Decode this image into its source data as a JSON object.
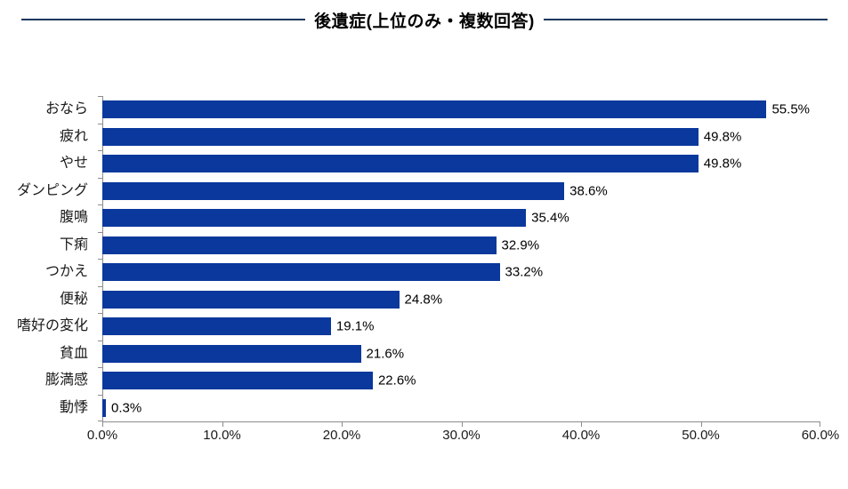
{
  "chart_data": {
    "type": "bar",
    "orientation": "horizontal",
    "title": "後遺症(上位のみ・複数回答)",
    "categories": [
      "おなら",
      "疲れ",
      "やせ",
      "ダンピング",
      "腹鳴",
      "下痢",
      "つかえ",
      "便秘",
      "嗜好の変化",
      "貧血",
      "膨満感",
      "動悸"
    ],
    "values": [
      55.5,
      49.8,
      49.8,
      38.6,
      35.4,
      32.9,
      33.2,
      24.8,
      19.1,
      21.6,
      22.6,
      0.3
    ],
    "value_labels": [
      "55.5%",
      "49.8%",
      "49.8%",
      "38.6%",
      "35.4%",
      "32.9%",
      "33.2%",
      "24.8%",
      "19.1%",
      "21.6%",
      "22.6%",
      "0.3%"
    ],
    "xlabel": "",
    "ylabel": "",
    "xlim": [
      0,
      60
    ],
    "x_tick_values": [
      0,
      10,
      20,
      30,
      40,
      50,
      60
    ],
    "x_tick_labels": [
      "0.0%",
      "10.0%",
      "20.0%",
      "30.0%",
      "40.0%",
      "50.0%",
      "60.0%"
    ],
    "grid": "off",
    "legend": "none",
    "bar_color": "#0a389c",
    "axis_color": "#8c8c8c",
    "title_rule_color": "#17375e"
  }
}
